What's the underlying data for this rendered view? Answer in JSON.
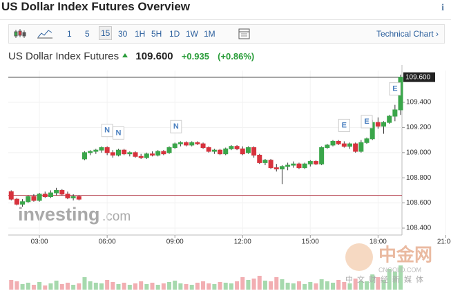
{
  "header": {
    "title": "US Dollar Index Futures Overview",
    "info": "i"
  },
  "toolbar": {
    "intervals": [
      "1",
      "5",
      "15",
      "30",
      "1H",
      "5H",
      "1D",
      "1W",
      "1M"
    ],
    "selected": "15",
    "link": "Technical Chart ›"
  },
  "quote": {
    "name": "US Dollar Index Futures",
    "price": "109.600",
    "change": "+0.935",
    "change_pct": "(+0.86%)"
  },
  "watermarks": {
    "brand": "investing",
    "brand_suffix": ".com",
    "cn_logo": "中金网",
    "cn_site": "CNGOLD.COM",
    "cn_slogan": "中文财经新媒体"
  },
  "chart_data": {
    "type": "candlestick",
    "x": [
      1.75,
      2,
      2.25,
      2.5,
      2.75,
      3,
      3.25,
      3.5,
      3.75,
      4,
      4.25,
      4.5,
      4.75,
      5,
      5.25,
      5.5,
      5.75,
      6,
      6.25,
      6.5,
      6.75,
      7,
      7.25,
      7.5,
      7.75,
      8,
      8.25,
      8.5,
      8.75,
      9,
      9.25,
      9.5,
      9.75,
      10,
      10.25,
      10.5,
      10.75,
      11,
      11.25,
      11.5,
      11.75,
      12,
      12.25,
      12.5,
      12.75,
      13,
      13.25,
      13.5,
      13.75,
      14,
      14.25,
      14.5,
      14.75,
      15,
      15.25,
      15.5,
      15.75,
      16,
      16.25,
      16.5,
      16.75,
      17,
      17.25,
      17.5,
      17.75,
      18,
      18.25,
      18.5,
      18.75,
      19
    ],
    "open": [
      108.69,
      108.63,
      108.59,
      108.61,
      108.65,
      108.62,
      108.67,
      108.65,
      108.68,
      108.7,
      108.67,
      108.64,
      108.65,
      108.95,
      109.0,
      109.01,
      109.02,
      109.04,
      109.0,
      108.98,
      109.02,
      108.99,
      109.0,
      108.97,
      108.96,
      108.99,
      108.98,
      109.01,
      109.0,
      109.04,
      109.07,
      109.08,
      109.06,
      109.08,
      109.07,
      109.04,
      109.01,
      109.02,
      108.99,
      109.03,
      109.05,
      109.03,
      109.0,
      109.04,
      108.98,
      108.92,
      108.94,
      108.88,
      108.87,
      108.89,
      108.9,
      108.91,
      108.88,
      108.91,
      108.93,
      108.91,
      109.04,
      109.06,
      109.09,
      109.07,
      109.05,
      109.07,
      109.01,
      109.08,
      109.11,
      109.24,
      109.21,
      109.24,
      109.29,
      109.34
    ],
    "high": [
      108.7,
      108.64,
      108.63,
      108.66,
      108.67,
      108.68,
      108.69,
      108.7,
      108.72,
      108.71,
      108.69,
      108.67,
      108.66,
      109.01,
      109.02,
      109.03,
      109.05,
      109.05,
      109.02,
      109.03,
      109.03,
      109.01,
      109.01,
      108.99,
      109.0,
      109.01,
      109.02,
      109.02,
      109.05,
      109.08,
      109.09,
      109.09,
      109.09,
      109.09,
      109.08,
      109.05,
      109.03,
      109.03,
      109.04,
      109.06,
      109.06,
      109.05,
      109.05,
      109.05,
      108.99,
      108.95,
      108.95,
      108.91,
      108.9,
      108.92,
      108.93,
      108.92,
      108.92,
      108.94,
      108.94,
      109.05,
      109.07,
      109.1,
      109.1,
      109.09,
      109.08,
      109.08,
      109.1,
      109.12,
      109.26,
      109.28,
      109.25,
      109.3,
      109.38,
      109.62
    ],
    "low": [
      108.62,
      108.58,
      108.57,
      108.6,
      108.61,
      108.61,
      108.64,
      108.64,
      108.66,
      108.66,
      108.63,
      108.62,
      108.62,
      108.94,
      108.98,
      108.99,
      109.0,
      108.98,
      108.96,
      108.97,
      108.98,
      108.97,
      108.96,
      108.95,
      108.95,
      108.97,
      108.97,
      108.98,
      108.99,
      109.03,
      109.05,
      109.05,
      109.05,
      109.06,
      109.03,
      109.0,
      108.99,
      108.98,
      108.98,
      109.02,
      109.02,
      108.98,
      108.99,
      108.96,
      108.91,
      108.9,
      108.87,
      108.85,
      108.75,
      108.86,
      108.88,
      108.87,
      108.87,
      108.89,
      108.9,
      108.9,
      109.03,
      109.05,
      109.06,
      109.04,
      109.03,
      109.0,
      109.0,
      109.07,
      109.1,
      109.19,
      109.15,
      109.23,
      109.25,
      109.3
    ],
    "close": [
      108.63,
      108.59,
      108.61,
      108.65,
      108.62,
      108.67,
      108.65,
      108.68,
      108.7,
      108.67,
      108.64,
      108.65,
      108.63,
      109.0,
      109.01,
      109.02,
      109.04,
      109.0,
      108.98,
      109.02,
      108.99,
      109.0,
      108.97,
      108.96,
      108.99,
      108.98,
      109.01,
      108.99,
      109.04,
      109.07,
      109.08,
      109.06,
      109.08,
      109.07,
      109.04,
      109.01,
      109.02,
      108.99,
      109.03,
      109.05,
      109.03,
      108.99,
      109.04,
      108.98,
      108.92,
      108.94,
      108.88,
      108.87,
      108.89,
      108.9,
      108.91,
      108.88,
      108.91,
      108.93,
      108.91,
      109.04,
      109.06,
      109.09,
      109.07,
      109.05,
      109.07,
      109.01,
      109.08,
      109.11,
      109.24,
      109.21,
      109.24,
      109.29,
      109.34,
      109.6
    ],
    "volume": [
      14,
      12,
      8,
      10,
      7,
      11,
      6,
      9,
      13,
      8,
      10,
      7,
      9,
      18,
      12,
      10,
      9,
      14,
      11,
      8,
      10,
      7,
      9,
      12,
      8,
      10,
      7,
      9,
      11,
      13,
      9,
      8,
      7,
      10,
      12,
      9,
      8,
      11,
      10,
      9,
      12,
      18,
      14,
      16,
      20,
      13,
      12,
      18,
      15,
      10,
      9,
      12,
      8,
      11,
      9,
      15,
      12,
      10,
      14,
      11,
      9,
      16,
      13,
      12,
      22,
      18,
      14,
      30,
      26,
      35
    ],
    "up_color": "#3aa64a",
    "down_color": "#d7323d",
    "up_volume_color": "#a6d9ad",
    "down_volume_color": "#f2aeb2",
    "xlim": [
      1.62,
      19.06
    ],
    "ylim": [
      108.345,
      109.653
    ],
    "xticks": [
      {
        "value": 3,
        "label": "03:00"
      },
      {
        "value": 6,
        "label": "06:00"
      },
      {
        "value": 9,
        "label": "09:00"
      },
      {
        "value": 12,
        "label": "12:00"
      },
      {
        "value": 15,
        "label": "15:00"
      },
      {
        "value": 18,
        "label": "18:00"
      },
      {
        "value": 21,
        "label": "21:00"
      }
    ],
    "yticks": [
      {
        "value": 108.4,
        "label": "108.400"
      },
      {
        "value": 108.6,
        "label": "108.600"
      },
      {
        "value": 108.8,
        "label": "108.800"
      },
      {
        "value": 109,
        "label": "109.000"
      },
      {
        "value": 109.2,
        "label": "109.200"
      },
      {
        "value": 109.4,
        "label": "109.400"
      }
    ],
    "grid": true,
    "last_price": {
      "value": 109.6,
      "label": "109.600",
      "color": "#222222"
    },
    "reference_line": {
      "value": 108.66,
      "color": "#b23a48"
    },
    "events": [
      {
        "x": 6,
        "label": "N"
      },
      {
        "x": 6.5,
        "label": "N"
      },
      {
        "x": 9.05,
        "label": "N"
      },
      {
        "x": 16.5,
        "label": "E"
      },
      {
        "x": 17.5,
        "label": "E"
      },
      {
        "x": 18.75,
        "label": "E"
      }
    ]
  }
}
